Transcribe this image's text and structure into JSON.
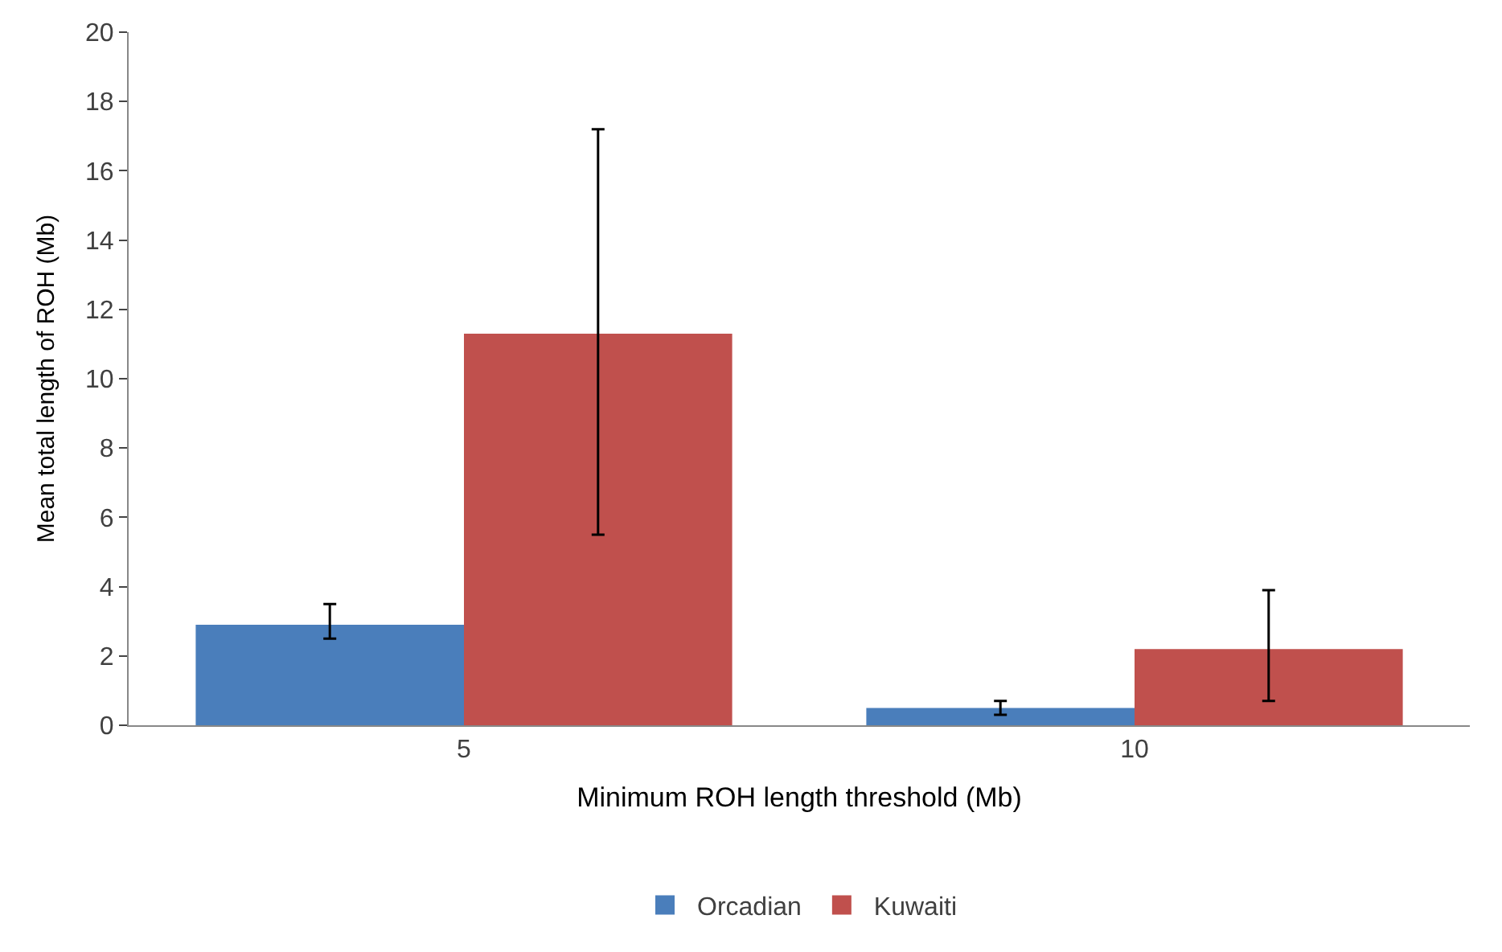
{
  "chart_data": {
    "type": "bar",
    "xlabel": "Minimum ROH length threshold (Mb)",
    "ylabel": "Mean total length of ROH (Mb)",
    "categories": [
      "5",
      "10"
    ],
    "series": [
      {
        "name": "Orcadian",
        "color": "#4a7ebb",
        "values": [
          2.9,
          0.5
        ],
        "errors": [
          [
            2.5,
            3.5
          ],
          [
            0.3,
            0.7
          ]
        ]
      },
      {
        "name": "Kuwaiti",
        "color": "#c0504d",
        "values": [
          11.3,
          2.2
        ],
        "errors": [
          [
            5.5,
            17.2
          ],
          [
            0.7,
            3.9
          ]
        ]
      }
    ],
    "ylim": [
      0,
      20
    ],
    "yticks": [
      0,
      2,
      4,
      6,
      8,
      10,
      12,
      14,
      16,
      18,
      20
    ],
    "grid": false,
    "legend": "bottom"
  }
}
